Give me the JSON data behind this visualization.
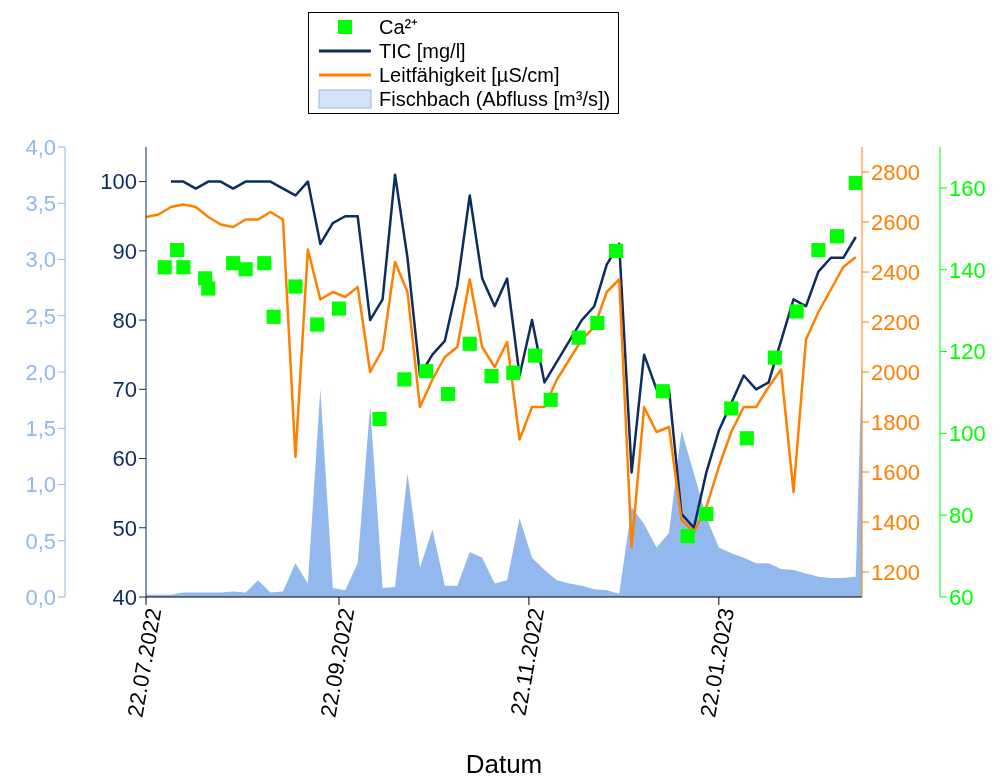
{
  "chart_data": [
    {
      "type": "area",
      "legend": "top",
      "tick_labels": "y",
      "x": [
        "2022-07-22",
        "2022-07-26",
        "2022-07-30",
        "2022-08-03",
        "2022-08-07",
        "2022-08-11",
        "2022-08-15",
        "2022-08-19",
        "2022-08-23",
        "2022-08-27",
        "2022-08-31",
        "2022-09-04",
        "2022-09-08",
        "2022-09-12",
        "2022-09-16",
        "2022-09-20",
        "2022-09-24",
        "2022-09-28",
        "2022-10-02",
        "2022-10-06",
        "2022-10-10",
        "2022-10-14",
        "2022-10-18",
        "2022-10-22",
        "2022-10-26",
        "2022-10-30",
        "2022-11-03",
        "2022-11-07",
        "2022-11-11",
        "2022-11-15",
        "2022-11-19",
        "2022-11-23",
        "2022-11-27",
        "2022-12-01",
        "2022-12-05",
        "2022-12-09",
        "2022-12-13",
        "2022-12-17",
        "2022-12-21",
        "2022-12-25",
        "2022-12-29",
        "2023-01-02",
        "2023-01-06",
        "2023-01-10",
        "2023-01-14",
        "2023-01-18",
        "2023-01-22",
        "2023-01-26",
        "2023-01-30",
        "2023-02-03",
        "2023-02-07",
        "2023-02-11",
        "2023-02-15",
        "2023-02-19",
        "2023-02-23",
        "2023-02-27",
        "2023-03-03",
        "2023-03-07",
        "2023-03-09"
      ],
      "xlim": [
        "2022-07-22",
        "2023-03-09"
      ],
      "ylim": [
        0,
        4
      ],
      "yticks": [
        {
          "value": 0,
          "label": "0,0"
        },
        {
          "value": 0.5,
          "label": "0,5"
        },
        {
          "value": 1,
          "label": "1,0"
        },
        {
          "value": 1.5,
          "label": "1,5"
        },
        {
          "value": 2,
          "label": "2,0"
        },
        {
          "value": 2.5,
          "label": "2,5"
        },
        {
          "value": 3,
          "label": "3,0"
        },
        {
          "value": 3.5,
          "label": "3,5"
        },
        {
          "value": 4,
          "label": "4,0"
        }
      ],
      "series": [
        {
          "name": "Fischbach (Abfluss [m³/s])",
          "color": "#92b8ee",
          "values": [
            0.02,
            0.02,
            0.02,
            0.04,
            0.04,
            0.04,
            0.04,
            0.05,
            0.04,
            0.15,
            0.04,
            0.05,
            0.3,
            0.12,
            1.85,
            0.08,
            0.06,
            0.3,
            1.7,
            0.08,
            0.09,
            1.1,
            0.26,
            0.6,
            0.1,
            0.1,
            0.4,
            0.35,
            0.12,
            0.15,
            0.7,
            0.35,
            0.24,
            0.15,
            0.12,
            0.1,
            0.07,
            0.06,
            0.03,
            0.8,
            0.65,
            0.44,
            0.57,
            1.48,
            1.1,
            0.71,
            0.44,
            0.39,
            0.35,
            0.3,
            0.3,
            0.25,
            0.24,
            0.21,
            0.18,
            0.17,
            0.17,
            0.18,
            2.1
          ]
        }
      ]
    },
    {
      "type": "line",
      "xlabel": "Datum",
      "legend": "top",
      "x": [
        "2022-07-22",
        "2022-07-26",
        "2022-07-30",
        "2022-08-03",
        "2022-08-07",
        "2022-08-11",
        "2022-08-15",
        "2022-08-19",
        "2022-08-23",
        "2022-08-27",
        "2022-08-31",
        "2022-09-04",
        "2022-09-08",
        "2022-09-12",
        "2022-09-16",
        "2022-09-20",
        "2022-09-24",
        "2022-09-28",
        "2022-10-02",
        "2022-10-06",
        "2022-10-10",
        "2022-10-14",
        "2022-10-18",
        "2022-10-22",
        "2022-10-26",
        "2022-10-30",
        "2022-11-03",
        "2022-11-07",
        "2022-11-11",
        "2022-11-15",
        "2022-11-19",
        "2022-11-23",
        "2022-11-27",
        "2022-12-01",
        "2022-12-05",
        "2022-12-09",
        "2022-12-13",
        "2022-12-17",
        "2022-12-21",
        "2022-12-25",
        "2022-12-29",
        "2023-01-02",
        "2023-01-06",
        "2023-01-10",
        "2023-01-14",
        "2023-01-18",
        "2023-01-22",
        "2023-01-26",
        "2023-01-30",
        "2023-02-03",
        "2023-02-07",
        "2023-02-11",
        "2023-02-15",
        "2023-02-19",
        "2023-02-23",
        "2023-02-27",
        "2023-03-03",
        "2023-03-07"
      ],
      "xlim": [
        "2022-07-22",
        "2023-03-09"
      ],
      "xticks": [
        {
          "value": "2022-07-22",
          "label": "22.07.2022"
        },
        {
          "value": "2022-09-22",
          "label": "22.09.2022"
        },
        {
          "value": "2022-11-22",
          "label": "22.11.2022"
        },
        {
          "value": "2023-01-22",
          "label": "22.01.2023"
        }
      ],
      "ylim": [
        40,
        105
      ],
      "yticks": [
        40,
        50,
        60,
        70,
        80,
        90,
        100
      ],
      "y2lim": [
        1100,
        2900
      ],
      "y2ticks": [
        1200,
        1400,
        1600,
        1800,
        2000,
        2200,
        2400,
        2600,
        2800
      ],
      "y3lim": [
        60,
        170
      ],
      "y3ticks": [
        60,
        80,
        100,
        120,
        140,
        160
      ],
      "series": [
        {
          "name": "Ca²⁺",
          "type": "scatter",
          "marker": "square",
          "axis": "y3",
          "color": "#00ff00",
          "x": [
            "2022-07-28",
            "2022-08-01",
            "2022-08-03",
            "2022-08-10",
            "2022-08-11",
            "2022-08-19",
            "2022-08-23",
            "2022-08-29",
            "2022-09-01",
            "2022-09-08",
            "2022-09-15",
            "2022-09-22",
            "2022-10-05",
            "2022-10-13",
            "2022-10-20",
            "2022-10-27",
            "2022-11-03",
            "2022-11-10",
            "2022-11-17",
            "2022-11-24",
            "2022-11-29",
            "2022-12-08",
            "2022-12-14",
            "2022-12-20",
            "2023-01-04",
            "2023-01-12",
            "2023-01-18",
            "2023-01-26",
            "2023-01-31",
            "2023-02-09",
            "2023-02-16",
            "2023-02-23",
            "2023-03-01",
            "2023-03-07"
          ],
          "values": [
            140.6,
            144.8,
            140.6,
            137.9,
            135.4,
            141.6,
            140.1,
            141.6,
            128.5,
            135.9,
            126.6,
            130.5,
            103.5,
            113.2,
            115.2,
            109.6,
            121.9,
            114,
            114.8,
            119,
            108.2,
            123.4,
            127,
            144.6,
            110.3,
            74.9,
            80.3,
            106.1,
            98.8,
            118.5,
            129.8,
            144.8,
            148.2,
            161.2
          ]
        },
        {
          "name": "TIC [mg/l]",
          "color": "#0d2d5e",
          "values": [
            null,
            null,
            100,
            100,
            99,
            100,
            100,
            99,
            100,
            100,
            100,
            99,
            98,
            100,
            91,
            94,
            95,
            95,
            80,
            83,
            101,
            89,
            72,
            75,
            77,
            85,
            98,
            86,
            82,
            86,
            72,
            80,
            71,
            74,
            77,
            80,
            82,
            88,
            91,
            58,
            75,
            70,
            70,
            52,
            50,
            58,
            64,
            68,
            72,
            70,
            71,
            77,
            83,
            82,
            87,
            89,
            89,
            92
          ]
        },
        {
          "name": "Leitfähigkeit [µS/cm]",
          "axis": "y2",
          "color": "#ff8000",
          "values": [
            2620,
            2630,
            2660,
            2670,
            2660,
            2620,
            2590,
            2580,
            2610,
            2610,
            2640,
            2610,
            1660,
            2490,
            2290,
            2320,
            2300,
            2340,
            2000,
            2090,
            2440,
            2320,
            1860,
            1970,
            2060,
            2100,
            2370,
            2100,
            2020,
            2120,
            1730,
            1860,
            1860,
            1970,
            2050,
            2130,
            2180,
            2320,
            2370,
            1300,
            1860,
            1760,
            1780,
            1410,
            1360,
            1460,
            1620,
            1760,
            1860,
            1860,
            1940,
            2010,
            1520,
            2130,
            2240,
            2330,
            2420,
            2460
          ]
        }
      ]
    }
  ]
}
